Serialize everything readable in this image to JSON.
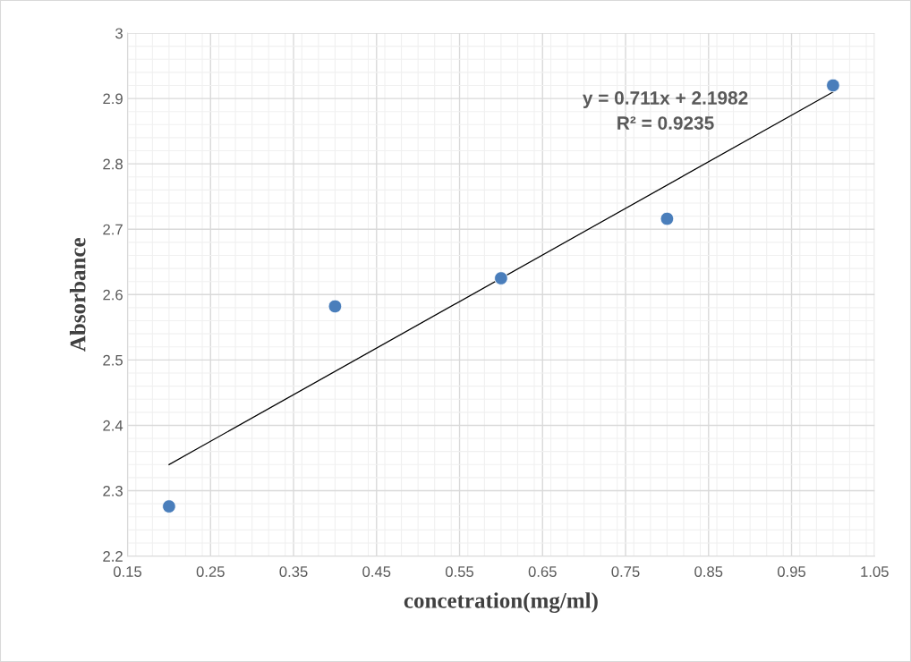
{
  "chart_data": {
    "type": "scatter",
    "xlabel": "concetration(mg/ml)",
    "ylabel": "Absorbance",
    "x": [
      0.2,
      0.4,
      0.6,
      0.8,
      1.0
    ],
    "series": [
      {
        "color": "#4a7ebb",
        "marker": "circle",
        "values": [
          2.276,
          2.582,
          2.625,
          2.716,
          2.92
        ]
      },
      {
        "type": "line",
        "color": "#000000",
        "x": [
          0.2,
          1.0
        ],
        "values": [
          2.34,
          2.91
        ]
      }
    ],
    "annotations": [
      "y = 0.711x + 2.1982",
      "R² = 0.9235"
    ],
    "xlim": [
      0.15,
      1.05
    ],
    "xticks": [
      0.15,
      0.25,
      0.35,
      0.45,
      0.55,
      0.65,
      0.75,
      0.85,
      0.95,
      1.05
    ],
    "ylim": [
      2.2,
      3
    ],
    "yticks": [
      2.2,
      2.3,
      2.4,
      2.5,
      2.6,
      2.7,
      2.8,
      2.9,
      3
    ],
    "grid": true
  }
}
